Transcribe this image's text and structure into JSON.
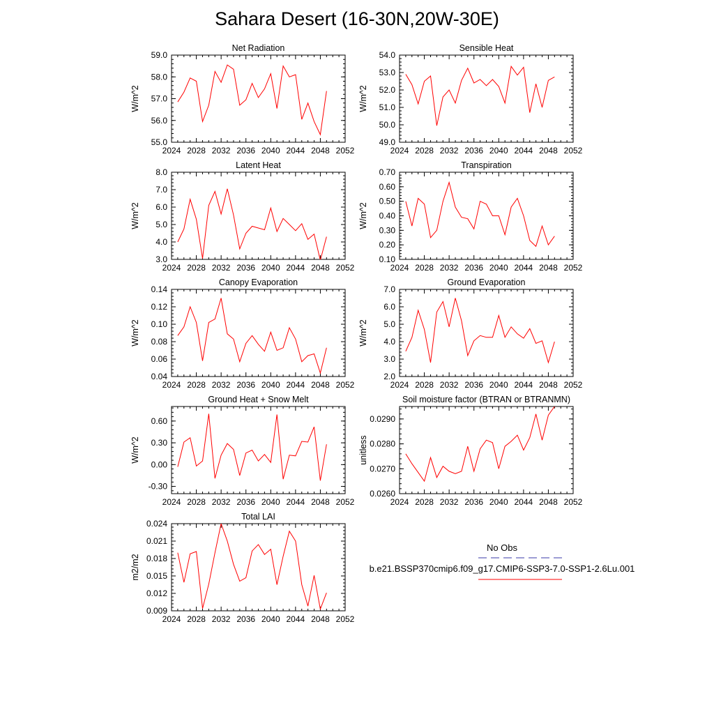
{
  "title": "Sahara Desert (16-30N,20W-30E)",
  "colors": {
    "series": "#ff0000",
    "obs": "#3a3aa8"
  },
  "legend": {
    "obs_label": "No Obs",
    "case_label": "b.e21.BSSP370cmip6.f09_g17.CMIP6-SSP3-7.0-SSP1-2.6Lu.001"
  },
  "chart_data": [
    {
      "type": "line",
      "title": "Net Radiation",
      "ylabel": "W/m^2",
      "xlim": [
        2024,
        2052
      ],
      "xticks": [
        "2024",
        "2028",
        "2032",
        "2036",
        "2040",
        "2044",
        "2048",
        "2052"
      ],
      "ylim": [
        55.0,
        59.0
      ],
      "yticks": [
        "55.0",
        "56.0",
        "57.0",
        "58.0",
        "59.0"
      ],
      "x": [
        2025,
        2026,
        2027,
        2028,
        2029,
        2030,
        2031,
        2032,
        2033,
        2034,
        2035,
        2036,
        2037,
        2038,
        2039,
        2040,
        2041,
        2042,
        2043,
        2044,
        2045,
        2046,
        2047,
        2048,
        2049
      ],
      "values": [
        56.85,
        57.3,
        57.95,
        57.8,
        55.95,
        56.7,
        58.25,
        57.75,
        58.55,
        58.35,
        56.7,
        56.95,
        57.7,
        57.05,
        57.45,
        58.15,
        56.55,
        58.5,
        58.0,
        58.1,
        56.05,
        56.8,
        55.95,
        55.35,
        57.35
      ]
    },
    {
      "type": "line",
      "title": "Sensible Heat",
      "ylabel": "W/m^2",
      "xlim": [
        2024,
        2052
      ],
      "xticks": [
        "2024",
        "2028",
        "2032",
        "2036",
        "2040",
        "2044",
        "2048",
        "2052"
      ],
      "ylim": [
        49.0,
        54.0
      ],
      "yticks": [
        "49.0",
        "50.0",
        "51.0",
        "52.0",
        "53.0",
        "54.0"
      ],
      "x": [
        2025,
        2026,
        2027,
        2028,
        2029,
        2030,
        2031,
        2032,
        2033,
        2034,
        2035,
        2036,
        2037,
        2038,
        2039,
        2040,
        2041,
        2042,
        2043,
        2044,
        2045,
        2046,
        2047,
        2048,
        2049
      ],
      "values": [
        52.9,
        52.3,
        51.2,
        52.5,
        52.8,
        49.95,
        51.6,
        52.0,
        51.25,
        52.55,
        53.25,
        52.4,
        52.6,
        52.25,
        52.6,
        52.2,
        51.25,
        53.35,
        52.85,
        53.3,
        50.7,
        52.35,
        51.0,
        52.55,
        52.75
      ]
    },
    {
      "type": "line",
      "title": "Latent Heat",
      "ylabel": "W/m^2",
      "xlim": [
        2024,
        2052
      ],
      "xticks": [
        "2024",
        "2028",
        "2032",
        "2036",
        "2040",
        "2044",
        "2048",
        "2052"
      ],
      "ylim": [
        3.0,
        8.0
      ],
      "yticks": [
        "3.0",
        "4.0",
        "5.0",
        "6.0",
        "7.0",
        "8.0"
      ],
      "x": [
        2025,
        2026,
        2027,
        2028,
        2029,
        2030,
        2031,
        2032,
        2033,
        2034,
        2035,
        2036,
        2037,
        2038,
        2039,
        2040,
        2041,
        2042,
        2043,
        2044,
        2045,
        2046,
        2047,
        2048,
        2049
      ],
      "values": [
        4.0,
        4.75,
        6.45,
        5.3,
        3.05,
        6.1,
        6.9,
        5.6,
        7.05,
        5.55,
        3.6,
        4.5,
        4.9,
        4.8,
        4.7,
        5.95,
        4.6,
        5.35,
        5.0,
        4.65,
        5.05,
        4.15,
        4.45,
        2.95,
        4.3
      ]
    },
    {
      "type": "line",
      "title": "Transpiration",
      "ylabel": "W/m^2",
      "xlim": [
        2024,
        2052
      ],
      "xticks": [
        "2024",
        "2028",
        "2032",
        "2036",
        "2040",
        "2044",
        "2048",
        "2052"
      ],
      "ylim": [
        0.1,
        0.7
      ],
      "yticks": [
        "0.10",
        "0.20",
        "0.30",
        "0.40",
        "0.50",
        "0.60",
        "0.70"
      ],
      "x": [
        2025,
        2026,
        2027,
        2028,
        2029,
        2030,
        2031,
        2032,
        2033,
        2034,
        2035,
        2036,
        2037,
        2038,
        2039,
        2040,
        2041,
        2042,
        2043,
        2044,
        2045,
        2046,
        2047,
        2048,
        2049
      ],
      "values": [
        0.5,
        0.33,
        0.52,
        0.48,
        0.25,
        0.3,
        0.5,
        0.63,
        0.46,
        0.39,
        0.38,
        0.31,
        0.5,
        0.48,
        0.4,
        0.4,
        0.27,
        0.46,
        0.52,
        0.4,
        0.23,
        0.19,
        0.33,
        0.2,
        0.26
      ]
    },
    {
      "type": "line",
      "title": "Canopy Evaporation",
      "ylabel": "W/m^2",
      "xlim": [
        2024,
        2052
      ],
      "xticks": [
        "2024",
        "2028",
        "2032",
        "2036",
        "2040",
        "2044",
        "2048",
        "2052"
      ],
      "ylim": [
        0.04,
        0.14
      ],
      "yticks": [
        "0.04",
        "0.06",
        "0.08",
        "0.10",
        "0.12",
        "0.14"
      ],
      "x": [
        2025,
        2026,
        2027,
        2028,
        2029,
        2030,
        2031,
        2032,
        2033,
        2034,
        2035,
        2036,
        2037,
        2038,
        2039,
        2040,
        2041,
        2042,
        2043,
        2044,
        2045,
        2046,
        2047,
        2048,
        2049
      ],
      "values": [
        0.087,
        0.097,
        0.12,
        0.102,
        0.058,
        0.102,
        0.106,
        0.13,
        0.089,
        0.083,
        0.057,
        0.078,
        0.087,
        0.077,
        0.069,
        0.091,
        0.07,
        0.073,
        0.096,
        0.083,
        0.057,
        0.064,
        0.066,
        0.044,
        0.073
      ]
    },
    {
      "type": "line",
      "title": "Ground Evaporation",
      "ylabel": "W/m^2",
      "xlim": [
        2024,
        2052
      ],
      "xticks": [
        "2024",
        "2028",
        "2032",
        "2036",
        "2040",
        "2044",
        "2048",
        "2052"
      ],
      "ylim": [
        2.0,
        7.0
      ],
      "yticks": [
        "2.0",
        "3.0",
        "4.0",
        "5.0",
        "6.0",
        "7.0"
      ],
      "x": [
        2025,
        2026,
        2027,
        2028,
        2029,
        2030,
        2031,
        2032,
        2033,
        2034,
        2035,
        2036,
        2037,
        2038,
        2039,
        2040,
        2041,
        2042,
        2043,
        2044,
        2045,
        2046,
        2047,
        2048,
        2049
      ],
      "values": [
        3.45,
        4.25,
        5.8,
        4.7,
        2.8,
        5.7,
        6.3,
        4.85,
        6.5,
        5.2,
        3.2,
        4.05,
        4.35,
        4.25,
        4.25,
        5.5,
        4.25,
        4.85,
        4.45,
        4.2,
        4.75,
        3.9,
        4.05,
        2.8,
        4.0
      ]
    },
    {
      "type": "line",
      "title": "Ground Heat + Snow Melt",
      "ylabel": "W/m^2",
      "xlim": [
        2024,
        2052
      ],
      "xticks": [
        "2024",
        "2028",
        "2032",
        "2036",
        "2040",
        "2044",
        "2048",
        "2052"
      ],
      "ylim": [
        -0.4,
        0.8
      ],
      "yticks": [
        "-0.30",
        "0.00",
        "0.30",
        "0.60"
      ],
      "ytick_values": [
        -0.3,
        0.0,
        0.3,
        0.6
      ],
      "x": [
        2025,
        2026,
        2027,
        2028,
        2029,
        2030,
        2031,
        2032,
        2033,
        2034,
        2035,
        2036,
        2037,
        2038,
        2039,
        2040,
        2041,
        2042,
        2043,
        2044,
        2045,
        2046,
        2047,
        2048,
        2049
      ],
      "values": [
        -0.03,
        0.31,
        0.37,
        -0.02,
        0.05,
        0.7,
        -0.19,
        0.13,
        0.29,
        0.21,
        -0.15,
        0.16,
        0.2,
        0.05,
        0.14,
        0.03,
        0.69,
        -0.2,
        0.13,
        0.12,
        0.32,
        0.31,
        0.52,
        -0.22,
        0.28
      ]
    },
    {
      "type": "line",
      "title": "Soil moisture factor (BTRAN or BTRANMN)",
      "ylabel": "unitless",
      "xlim": [
        2024,
        2052
      ],
      "xticks": [
        "2024",
        "2028",
        "2032",
        "2036",
        "2040",
        "2044",
        "2048",
        "2052"
      ],
      "ylim": [
        0.026,
        0.0295
      ],
      "yticks": [
        "0.0260",
        "0.0270",
        "0.0280",
        "0.0290"
      ],
      "ytick_values": [
        0.026,
        0.027,
        0.028,
        0.029
      ],
      "x": [
        2025,
        2026,
        2027,
        2028,
        2029,
        2030,
        2031,
        2032,
        2033,
        2034,
        2035,
        2036,
        2037,
        2038,
        2039,
        2040,
        2041,
        2042,
        2043,
        2044,
        2045,
        2046,
        2047,
        2048,
        2049
      ],
      "values": [
        0.0276,
        0.0272,
        0.02685,
        0.0265,
        0.02745,
        0.02665,
        0.0271,
        0.0269,
        0.0268,
        0.0269,
        0.0279,
        0.0269,
        0.0278,
        0.02815,
        0.02805,
        0.027,
        0.0279,
        0.0281,
        0.02835,
        0.02775,
        0.02825,
        0.0292,
        0.02815,
        0.02915,
        0.0295
      ]
    },
    {
      "type": "line",
      "title": "Total LAI",
      "ylabel": "m2/m2",
      "xlim": [
        2024,
        2052
      ],
      "xticks": [
        "2024",
        "2028",
        "2032",
        "2036",
        "2040",
        "2044",
        "2048",
        "2052"
      ],
      "ylim": [
        0.009,
        0.024
      ],
      "yticks": [
        "0.009",
        "0.012",
        "0.015",
        "0.018",
        "0.021",
        "0.024"
      ],
      "x": [
        2025,
        2026,
        2027,
        2028,
        2029,
        2030,
        2031,
        2032,
        2033,
        2034,
        2035,
        2036,
        2037,
        2038,
        2039,
        2040,
        2041,
        2042,
        2043,
        2044,
        2045,
        2046,
        2047,
        2048,
        2049
      ],
      "values": [
        0.019,
        0.0139,
        0.0188,
        0.0192,
        0.0094,
        0.0136,
        0.019,
        0.024,
        0.021,
        0.017,
        0.0141,
        0.0147,
        0.0193,
        0.0204,
        0.0187,
        0.0196,
        0.0135,
        0.0184,
        0.0227,
        0.021,
        0.0135,
        0.0098,
        0.0151,
        0.0093,
        0.0121
      ]
    }
  ]
}
